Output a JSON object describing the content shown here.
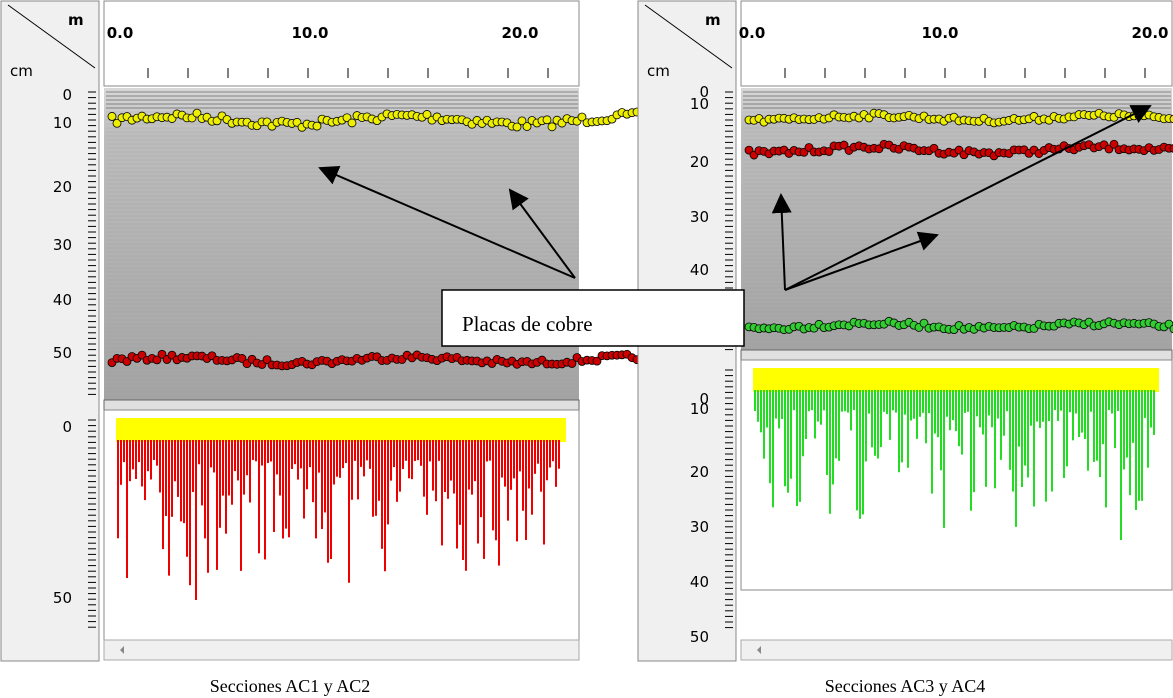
{
  "panels": [
    {
      "unit_x": "m",
      "unit_y": "cm",
      "x_ticks": [
        "0.0",
        "10.0",
        "20.0"
      ],
      "depth_ticks_top": [
        "0",
        "10",
        "20",
        "30",
        "40",
        "50"
      ],
      "depth_ticks_bottom": [
        "0",
        "50"
      ],
      "caption": "Secciones AC1 y AC2"
    },
    {
      "unit_x": "m",
      "unit_y": "cm",
      "x_ticks": [
        "0.0",
        "10.0",
        "20.0"
      ],
      "depth_ticks_top": [
        "0",
        "10",
        "20",
        "30",
        "40"
      ],
      "depth_ticks_bottom": [
        "0",
        "10",
        "20",
        "30",
        "40",
        "50"
      ],
      "caption": "Secciones AC3 y AC4"
    }
  ],
  "annotation": "Placas de cobre"
}
